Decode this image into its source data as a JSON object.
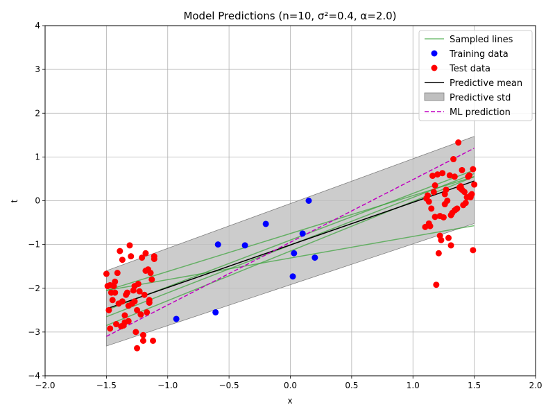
{
  "chart_data": {
    "type": "scatter",
    "title": "Model Predictions (n=10, σ²=0.4, α=2.0)",
    "xlabel": "x",
    "ylabel": "t",
    "xlim": [
      -2.0,
      2.0
    ],
    "ylim": [
      -4,
      4
    ],
    "xticks": [
      -2.0,
      -1.5,
      -1.0,
      -0.5,
      0.0,
      0.5,
      1.0,
      1.5,
      2.0
    ],
    "yticks": [
      -4,
      -3,
      -2,
      -1,
      0,
      1,
      2,
      3,
      4
    ],
    "xtick_labels": [
      "−2.0",
      "−1.5",
      "−1.0",
      "−0.5",
      "0.0",
      "0.5",
      "1.0",
      "1.5",
      "2.0"
    ],
    "ytick_labels": [
      "−4",
      "−3",
      "−2",
      "−1",
      "0",
      "1",
      "2",
      "3",
      "4"
    ],
    "grid": true,
    "legend_position": "top-right",
    "legend": [
      {
        "label": "Sampled lines",
        "kind": "line",
        "color": "#2ca02c"
      },
      {
        "label": "Training data",
        "kind": "dot",
        "color": "#0000ff"
      },
      {
        "label": "Test data",
        "kind": "dot",
        "color": "#ff0000"
      },
      {
        "label": "Predictive mean",
        "kind": "line",
        "color": "#000000"
      },
      {
        "label": "Predictive std",
        "kind": "patch",
        "color": "#bfbfbf"
      },
      {
        "label": "ML prediction",
        "kind": "dashed",
        "color": "#c000c0"
      }
    ],
    "colors": {
      "sampled": "#2ca02c",
      "training": "#0000ff",
      "test": "#ff0000",
      "mean": "#000000",
      "std_fill": "#bfbfbf",
      "ml": "#c000c0"
    },
    "sampled_lines": [
      {
        "x": [
          -1.5,
          1.5
        ],
        "y": [
          -2.05,
          -0.57
        ]
      },
      {
        "x": [
          -1.5,
          1.5
        ],
        "y": [
          -2.5,
          0.7
        ]
      },
      {
        "x": [
          -1.5,
          1.5
        ],
        "y": [
          -2.85,
          0.55
        ]
      },
      {
        "x": [
          -1.5,
          1.5
        ],
        "y": [
          -2.05,
          0.55
        ]
      },
      {
        "x": [
          -1.5,
          1.5
        ],
        "y": [
          -2.65,
          0.62
        ]
      }
    ],
    "predictive_mean": {
      "x": [
        -1.5,
        1.5
      ],
      "y": [
        -2.47,
        0.45
      ]
    },
    "predictive_std": {
      "x": [
        -1.5,
        1.5
      ],
      "upper": [
        -1.6,
        1.47
      ],
      "lower": [
        -3.32,
        -0.52
      ]
    },
    "ml_prediction": {
      "x": [
        -1.5,
        1.5
      ],
      "y": [
        -3.1,
        1.2
      ]
    },
    "training_data": [
      [
        -0.93,
        -2.7
      ],
      [
        -0.59,
        -1.0
      ],
      [
        -0.61,
        -2.55
      ],
      [
        -0.37,
        -1.02
      ],
      [
        -0.2,
        -0.53
      ],
      [
        0.02,
        -1.73
      ],
      [
        0.03,
        -1.2
      ],
      [
        0.1,
        -0.75
      ],
      [
        0.15,
        0.0
      ],
      [
        0.2,
        -1.3
      ]
    ],
    "test_data": [
      [
        -1.5,
        -1.67
      ],
      [
        -1.49,
        -1.95
      ],
      [
        -1.48,
        -2.5
      ],
      [
        -1.47,
        -1.93
      ],
      [
        -1.47,
        -2.92
      ],
      [
        -1.46,
        -2.1
      ],
      [
        -1.45,
        -2.27
      ],
      [
        -1.44,
        -1.95
      ],
      [
        -1.43,
        -1.85
      ],
      [
        -1.43,
        -2.1
      ],
      [
        -1.42,
        -2.82
      ],
      [
        -1.41,
        -1.65
      ],
      [
        -1.4,
        -2.35
      ],
      [
        -1.39,
        -1.15
      ],
      [
        -1.38,
        -2.87
      ],
      [
        -1.37,
        -1.35
      ],
      [
        -1.37,
        -2.3
      ],
      [
        -1.36,
        -2.85
      ],
      [
        -1.35,
        -2.62
      ],
      [
        -1.35,
        -2.78
      ],
      [
        -1.34,
        -2.15
      ],
      [
        -1.33,
        -2.1
      ],
      [
        -1.32,
        -2.75
      ],
      [
        -1.32,
        -2.4
      ],
      [
        -1.31,
        -1.02
      ],
      [
        -1.3,
        -1.27
      ],
      [
        -1.29,
        -2.35
      ],
      [
        -1.28,
        -2.05
      ],
      [
        -1.27,
        -2.3
      ],
      [
        -1.27,
        -1.95
      ],
      [
        -1.26,
        -3.0
      ],
      [
        -1.25,
        -2.5
      ],
      [
        -1.25,
        -3.37
      ],
      [
        -1.24,
        -1.9
      ],
      [
        -1.23,
        -2.07
      ],
      [
        -1.22,
        -2.6
      ],
      [
        -1.21,
        -1.3
      ],
      [
        -1.2,
        -3.07
      ],
      [
        -1.2,
        -3.2
      ],
      [
        -1.19,
        -2.15
      ],
      [
        -1.18,
        -1.6
      ],
      [
        -1.18,
        -1.2
      ],
      [
        -1.17,
        -2.55
      ],
      [
        -1.16,
        -1.57
      ],
      [
        -1.15,
        -2.27
      ],
      [
        -1.15,
        -2.33
      ],
      [
        -1.14,
        -1.65
      ],
      [
        -1.13,
        -1.8
      ],
      [
        -1.12,
        -3.2
      ],
      [
        -1.11,
        -1.27
      ],
      [
        -1.11,
        -1.33
      ],
      [
        1.1,
        -0.6
      ],
      [
        1.11,
        0.05
      ],
      [
        1.12,
        0.12
      ],
      [
        1.13,
        -0.02
      ],
      [
        1.13,
        -0.52
      ],
      [
        1.14,
        -0.58
      ],
      [
        1.15,
        -0.18
      ],
      [
        1.16,
        0.57
      ],
      [
        1.17,
        0.2
      ],
      [
        1.18,
        -0.37
      ],
      [
        1.18,
        0.35
      ],
      [
        1.19,
        -1.92
      ],
      [
        1.2,
        0.6
      ],
      [
        1.21,
        -1.2
      ],
      [
        1.22,
        -0.8
      ],
      [
        1.22,
        -0.35
      ],
      [
        1.23,
        -0.9
      ],
      [
        1.24,
        0.63
      ],
      [
        1.25,
        -0.38
      ],
      [
        1.26,
        0.15
      ],
      [
        1.26,
        -0.08
      ],
      [
        1.27,
        0.25
      ],
      [
        1.28,
        0.0
      ],
      [
        1.29,
        -0.85
      ],
      [
        1.3,
        0.58
      ],
      [
        1.31,
        -0.33
      ],
      [
        1.31,
        -1.02
      ],
      [
        1.32,
        -0.28
      ],
      [
        1.33,
        0.95
      ],
      [
        1.34,
        -0.22
      ],
      [
        1.34,
        0.55
      ],
      [
        1.35,
        -0.2
      ],
      [
        1.36,
        -0.18
      ],
      [
        1.37,
        1.33
      ],
      [
        1.38,
        0.3
      ],
      [
        1.39,
        0.33
      ],
      [
        1.4,
        0.7
      ],
      [
        1.4,
        0.25
      ],
      [
        1.41,
        -0.1
      ],
      [
        1.42,
        0.2
      ],
      [
        1.43,
        -0.05
      ],
      [
        1.44,
        0.08
      ],
      [
        1.45,
        0.55
      ],
      [
        1.46,
        0.58
      ],
      [
        1.47,
        0.08
      ],
      [
        1.47,
        0.12
      ],
      [
        1.48,
        0.15
      ],
      [
        1.49,
        -1.13
      ],
      [
        1.49,
        0.72
      ],
      [
        1.5,
        0.37
      ]
    ]
  }
}
